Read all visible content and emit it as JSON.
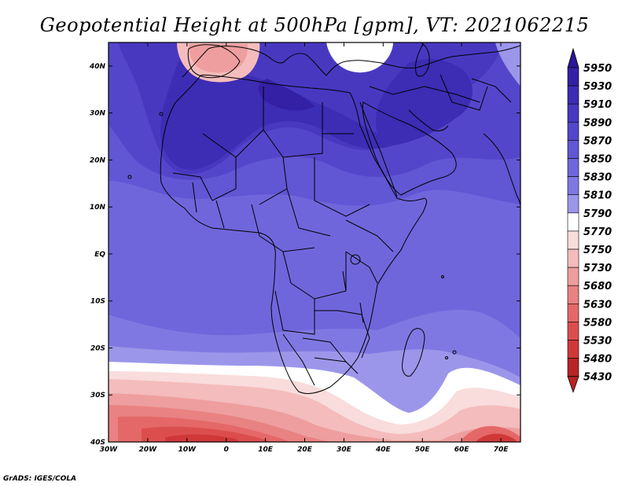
{
  "title": "Geopotential Height at 500hPa [gpm], VT: 2021062215",
  "credit": "GrADS: IGES/COLA",
  "map": {
    "lon_range": [
      -30,
      75
    ],
    "lat_range": [
      -40,
      45
    ],
    "lat_ticks": [
      {
        "lat": 40,
        "label": "40N"
      },
      {
        "lat": 30,
        "label": "30N"
      },
      {
        "lat": 20,
        "label": "20N"
      },
      {
        "lat": 10,
        "label": "10N"
      },
      {
        "lat": 0,
        "label": "EQ"
      },
      {
        "lat": -10,
        "label": "10S"
      },
      {
        "lat": -20,
        "label": "20S"
      },
      {
        "lat": -30,
        "label": "30S"
      },
      {
        "lat": -40,
        "label": "40S"
      }
    ],
    "lon_ticks": [
      {
        "lon": -30,
        "label": "30W"
      },
      {
        "lon": -20,
        "label": "20W"
      },
      {
        "lon": -10,
        "label": "10W"
      },
      {
        "lon": 0,
        "label": "0"
      },
      {
        "lon": 10,
        "label": "10E"
      },
      {
        "lon": 20,
        "label": "20E"
      },
      {
        "lon": 30,
        "label": "30E"
      },
      {
        "lon": 40,
        "label": "40E"
      },
      {
        "lon": 50,
        "label": "50E"
      },
      {
        "lon": 60,
        "label": "60E"
      },
      {
        "lon": 70,
        "label": "70E"
      }
    ]
  },
  "colorbar": {
    "levels": [
      {
        "label": "5950",
        "color": "#2a1696"
      },
      {
        "label": "5930",
        "color": "#3420a4"
      },
      {
        "label": "5910",
        "color": "#3d2cb4"
      },
      {
        "label": "5890",
        "color": "#4838c0"
      },
      {
        "label": "5870",
        "color": "#5446ca"
      },
      {
        "label": "5850",
        "color": "#6156d4"
      },
      {
        "label": "5830",
        "color": "#7066dc"
      },
      {
        "label": "5810",
        "color": "#8078e2"
      },
      {
        "label": "5790",
        "color": "#9c96ea"
      },
      {
        "label": "5770",
        "color": "#ffffff"
      },
      {
        "label": "5750",
        "color": "#f9dcdc"
      },
      {
        "label": "5730",
        "color": "#f4bcbc"
      },
      {
        "label": "5680",
        "color": "#ee9e9e"
      },
      {
        "label": "5630",
        "color": "#e98282"
      },
      {
        "label": "5580",
        "color": "#e46868"
      },
      {
        "label": "5530",
        "color": "#dc4e4e"
      },
      {
        "label": "5480",
        "color": "#d03838"
      },
      {
        "label": "5430",
        "color": "#b82424"
      }
    ],
    "top_color": "#2a1696",
    "bottom_color": "#b82424"
  }
}
